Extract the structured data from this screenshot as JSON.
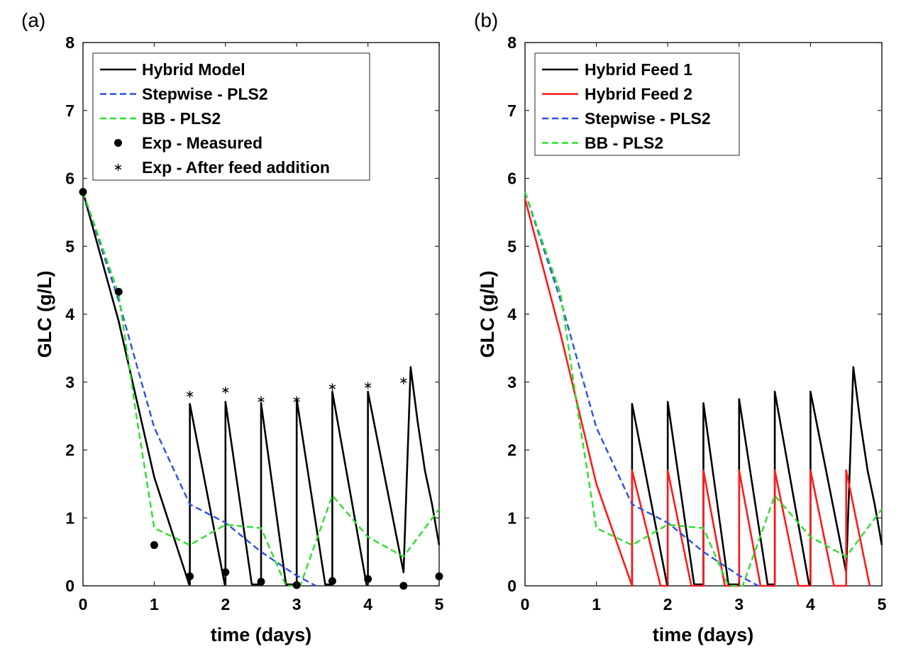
{
  "chart_data": [
    {
      "panel_label": "(a)",
      "type": "line",
      "xlabel": "time (days)",
      "ylabel": "GLC (g/L)",
      "xlim": [
        0,
        5
      ],
      "ylim": [
        0,
        8
      ],
      "xticks": [
        "0",
        "1",
        "2",
        "3",
        "4",
        "5"
      ],
      "yticks": [
        "0",
        "1",
        "2",
        "3",
        "4",
        "5",
        "6",
        "7",
        "8"
      ],
      "legend_position": "top",
      "series": [
        {
          "name": "Hybrid Model",
          "kind": "line",
          "color": "#000000",
          "dash": "solid",
          "x": [
            0,
            0.5,
            1,
            1.49,
            1.5,
            1.5,
            1.99,
            2,
            2,
            2.37,
            2.5,
            2.5,
            2.85,
            3,
            3,
            3.4,
            3.5,
            3.5,
            3.98,
            4,
            4,
            4.5,
            4.5,
            4.6,
            4.7,
            4.8,
            4.9,
            5
          ],
          "y": [
            5.8,
            3.9,
            1.6,
            0.02,
            0.02,
            2.68,
            0.02,
            0.02,
            2.71,
            0.02,
            0.02,
            2.69,
            0.02,
            0.02,
            2.75,
            0.02,
            0.02,
            2.86,
            0.02,
            0.02,
            2.86,
            0.2,
            0.2,
            3.22,
            2.4,
            1.7,
            1.2,
            0.6
          ]
        },
        {
          "name": "Stepwise - PLS2",
          "kind": "line",
          "color": "#2b50e6",
          "dash": "dashed",
          "x": [
            0,
            0.5,
            1,
            1.5,
            2,
            2.5,
            3,
            3.27
          ],
          "y": [
            5.8,
            4.2,
            2.33,
            1.2,
            0.93,
            0.5,
            0.15,
            0
          ]
        },
        {
          "name": "BB - PLS2",
          "kind": "line",
          "color": "#2be02b",
          "dash": "dashed",
          "x": [
            0,
            0.5,
            0.75,
            1,
            1.5,
            2,
            2.5,
            2.85,
            3.05,
            3.5,
            4,
            4.5,
            5
          ],
          "y": [
            5.8,
            4.3,
            2.5,
            0.85,
            0.6,
            0.9,
            0.85,
            0,
            0,
            1.33,
            0.72,
            0.43,
            1.13
          ]
        },
        {
          "name": "Exp - Measured",
          "kind": "scatter",
          "marker": "circle",
          "color": "#000000",
          "x": [
            0,
            0.5,
            1,
            1.5,
            2,
            2.5,
            3,
            3.5,
            4,
            4.5,
            5
          ],
          "y": [
            5.8,
            4.33,
            0.6,
            0.14,
            0.2,
            0.06,
            0.01,
            0.07,
            0.1,
            0.0,
            0.14
          ]
        },
        {
          "name": "Exp - After feed addition",
          "kind": "scatter",
          "marker": "asterisk",
          "color": "#000000",
          "x": [
            1.5,
            2,
            2.5,
            3,
            3.5,
            4,
            4.5
          ],
          "y": [
            2.82,
            2.88,
            2.74,
            2.74,
            2.93,
            2.95,
            3.02
          ]
        }
      ]
    },
    {
      "panel_label": "(b)",
      "type": "line",
      "xlabel": "time (days)",
      "ylabel": "GLC (g/L)",
      "xlim": [
        0,
        5
      ],
      "ylim": [
        0,
        8
      ],
      "xticks": [
        "0",
        "1",
        "2",
        "3",
        "4",
        "5"
      ],
      "yticks": [
        "0",
        "1",
        "2",
        "3",
        "4",
        "5",
        "6",
        "7",
        "8"
      ],
      "legend_position": "top",
      "series": [
        {
          "name": "Hybrid Feed 1",
          "kind": "line",
          "color": "#000000",
          "dash": "solid",
          "x": [
            1.5,
            1.5,
            1.99,
            2,
            2,
            2.37,
            2.5,
            2.5,
            2.85,
            3,
            3,
            3.4,
            3.5,
            3.5,
            3.98,
            4,
            4,
            4.5,
            4.5,
            4.6,
            4.7,
            4.8,
            4.9,
            5
          ],
          "y": [
            0,
            2.68,
            0.02,
            0.02,
            2.71,
            0.02,
            0.02,
            2.69,
            0.02,
            0.02,
            2.75,
            0.02,
            0.02,
            2.86,
            0.02,
            0.02,
            2.86,
            0.2,
            0.2,
            3.22,
            2.4,
            1.7,
            1.2,
            0.6
          ]
        },
        {
          "name": "Hybrid Feed 2",
          "kind": "line",
          "color": "#ff1a1a",
          "dash": "solid",
          "x": [
            0,
            0.5,
            1,
            1.5,
            1.5,
            1.5,
            1.9,
            2,
            2,
            2.33,
            2.5,
            2.5,
            2.8,
            3,
            3,
            3.3,
            3.5,
            3.5,
            3.83,
            4,
            4,
            4.33,
            4.5,
            4.5,
            4.83
          ],
          "y": [
            5.7,
            3.7,
            1.5,
            0,
            0,
            1.7,
            0,
            0,
            1.7,
            0,
            0,
            1.7,
            0,
            0,
            1.7,
            0,
            0,
            1.7,
            0,
            0,
            1.7,
            0,
            0,
            1.7,
            0
          ]
        },
        {
          "name": "Stepwise - PLS2",
          "kind": "line",
          "color": "#2b50e6",
          "dash": "dashed",
          "x": [
            0,
            0.5,
            1,
            1.5,
            2,
            2.5,
            3,
            3.27
          ],
          "y": [
            5.8,
            4.2,
            2.33,
            1.2,
            0.93,
            0.5,
            0.15,
            0
          ]
        },
        {
          "name": "BB - PLS2",
          "kind": "line",
          "color": "#2be02b",
          "dash": "dashed",
          "x": [
            0,
            0.5,
            0.75,
            1,
            1.5,
            2,
            2.5,
            2.85,
            3.05,
            3.5,
            4,
            4.5,
            5
          ],
          "y": [
            5.8,
            4.3,
            2.5,
            0.85,
            0.6,
            0.9,
            0.85,
            0,
            0,
            1.33,
            0.72,
            0.43,
            1.13
          ]
        }
      ]
    }
  ]
}
